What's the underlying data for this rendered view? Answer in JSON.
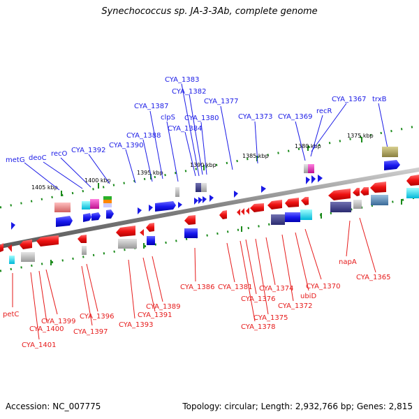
{
  "header": {
    "title": "Synechococcus sp. JA-3-3Ab, complete genome"
  },
  "footer": {
    "accession": "Accession: NC_007775",
    "topology": "Topology: circular; Length: 2,932,766 bp; Genes: 2,815"
  },
  "scale_labels": [
    "1405 kbp",
    "1400 kbp",
    "1395 kbp",
    "1390 kbp",
    "1385 kbp",
    "1380 kbp",
    "1375 kbp"
  ],
  "upper_labels": [
    "metG",
    "deoC",
    "recO",
    "CYA_1392",
    "CYA_1390",
    "CYA_1388",
    "CYA_1387",
    "clpS",
    "CYA_1384",
    "CYA_1383",
    "CYA_1382",
    "CYA_1380",
    "CYA_1377",
    "CYA_1373",
    "CYA_1369",
    "recR",
    "CYA_1367",
    "trxB"
  ],
  "lower_labels": [
    "petC",
    "CYA_1401",
    "CYA_1400",
    "CYA_1399",
    "CYA_1397",
    "CYA_1396",
    "CYA_1393",
    "CYA_1391",
    "CYA_1389",
    "CYA_1386",
    "CYA_1381",
    "CYA_1376",
    "CYA_1378",
    "CYA_1375",
    "CYA_1374",
    "CYA_1372",
    "ubiD",
    "CYA_1370",
    "napA",
    "CYA_1365"
  ],
  "colors": {
    "forward": "#1a1ae6",
    "reverse": "#e61a1a",
    "backbone": "#888888",
    "tick": "#1a8a1a"
  }
}
